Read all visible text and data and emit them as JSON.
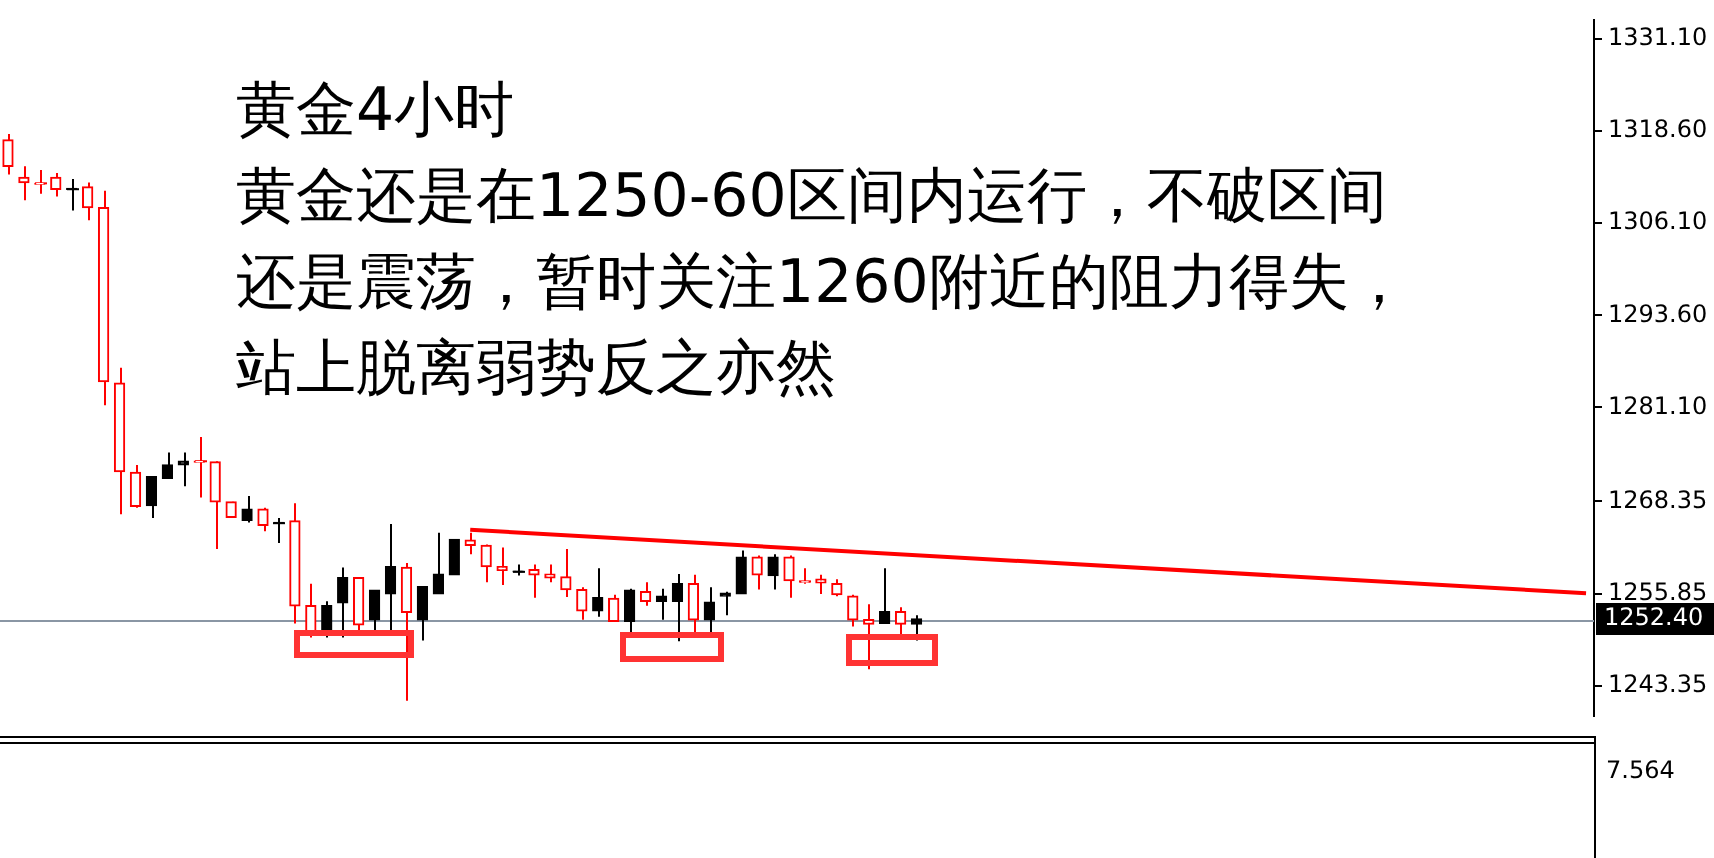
{
  "chart_data": [
    {
      "type": "candlestick",
      "title": "黄金4小时",
      "annotations": [
        "黄金还是在1250-60区间内运行，不破区间",
        "还是震荡，暂时关注1260附近的阻力得失，",
        "站上脱离弱势反之亦然"
      ],
      "categories": [
        null,
        null,
        null,
        null,
        null,
        null,
        null,
        null,
        null,
        null,
        null,
        null,
        null,
        null,
        null,
        null,
        null,
        null,
        null,
        null,
        null,
        null,
        null,
        null,
        null,
        null,
        null,
        null,
        null,
        null,
        null,
        null,
        null,
        null,
        null,
        null,
        null,
        null,
        null,
        null,
        null,
        null,
        null,
        null,
        null,
        null,
        null,
        null,
        null,
        null,
        null,
        null,
        null,
        null,
        null,
        null,
        null,
        null,
        null,
        null,
        null,
        null,
        null,
        null,
        null,
        null,
        null,
        null,
        null,
        null,
        null,
        null,
        null,
        null,
        null,
        null,
        null,
        null,
        null,
        null,
        null,
        null,
        null,
        null,
        null,
        null,
        null,
        null,
        null,
        null,
        null,
        null,
        null,
        null,
        null,
        null,
        null,
        null,
        null,
        null
      ],
      "ohlc": [
        [
          1317.4,
          1318.2,
          1312.7,
          1313.8
        ],
        [
          1312.3,
          1313.8,
          1309.2,
          1311.6
        ],
        [
          1311.5,
          1313.3,
          1310.1,
          1311.4
        ],
        [
          1312.3,
          1312.9,
          1309.7,
          1310.7
        ],
        [
          1310.7,
          1312.1,
          1307.8,
          1310.8
        ],
        [
          1311.0,
          1311.6,
          1306.5,
          1308.2
        ],
        [
          1308.2,
          1310.5,
          1281.4,
          1284.6
        ],
        [
          1284.4,
          1286.5,
          1266.6,
          1272.4
        ],
        [
          1272.3,
          1273.3,
          1267.5,
          1267.7
        ],
        [
          1267.8,
          1271.7,
          1266.1,
          1271.7
        ],
        [
          1271.5,
          1275.0,
          1271.5,
          1273.3
        ],
        [
          1273.3,
          1275.0,
          1270.4,
          1273.8
        ],
        [
          1273.8,
          1277.1,
          1268.9,
          1273.7
        ],
        [
          1273.7,
          1273.8,
          1261.9,
          1268.3
        ],
        [
          1268.3,
          1268.3,
          1266.2,
          1266.2
        ],
        [
          1265.8,
          1269.1,
          1265.5,
          1267.3
        ],
        [
          1267.3,
          1267.5,
          1264.3,
          1265.1
        ],
        [
          1265.4,
          1266.1,
          1262.7,
          1265.5
        ],
        [
          1265.7,
          1268.1,
          1251.8,
          1254.2
        ],
        [
          1254.2,
          1257.2,
          1249.9,
          1250.7
        ],
        [
          1250.7,
          1254.8,
          1249.9,
          1254.2
        ],
        [
          1254.6,
          1259.4,
          1249.9,
          1258.0
        ],
        [
          1258.0,
          1258.0,
          1250.9,
          1251.6
        ],
        [
          1252.3,
          1256.3,
          1250.9,
          1256.3
        ],
        [
          1255.8,
          1265.3,
          1250.9,
          1259.5
        ],
        [
          1259.4,
          1260.0,
          1241.3,
          1253.3
        ],
        [
          1252.3,
          1256.8,
          1249.5,
          1256.8
        ],
        [
          1255.8,
          1264.1,
          1255.8,
          1258.5
        ],
        [
          1258.4,
          1263.2,
          1258.4,
          1263.2
        ],
        [
          1263.1,
          1264.1,
          1261.2,
          1262.4
        ],
        [
          1262.4,
          1262.5,
          1257.4,
          1259.5
        ],
        [
          1259.5,
          1262.1,
          1257.0,
          1259.0
        ],
        [
          1258.8,
          1259.8,
          1258.3,
          1258.9
        ],
        [
          1259.1,
          1259.8,
          1255.3,
          1258.4
        ],
        [
          1258.5,
          1259.8,
          1257.4,
          1258.0
        ],
        [
          1258.1,
          1261.9,
          1255.4,
          1256.4
        ],
        [
          1256.4,
          1256.7,
          1252.3,
          1253.5
        ],
        [
          1253.5,
          1259.3,
          1252.7,
          1255.3
        ],
        [
          1255.2,
          1255.7,
          1252.1,
          1252.1
        ],
        [
          1252.1,
          1256.5,
          1250.1,
          1256.3
        ],
        [
          1256.1,
          1257.4,
          1254.2,
          1254.8
        ],
        [
          1254.8,
          1256.5,
          1252.3,
          1255.5
        ],
        [
          1254.8,
          1258.5,
          1249.4,
          1257.2
        ],
        [
          1257.2,
          1258.4,
          1250.1,
          1252.3
        ],
        [
          1252.3,
          1256.7,
          1250.4,
          1254.7
        ],
        [
          1255.5,
          1256.1,
          1252.9,
          1255.9
        ],
        [
          1255.8,
          1261.7,
          1255.8,
          1260.8
        ],
        [
          1260.8,
          1261.0,
          1256.4,
          1258.4
        ],
        [
          1258.3,
          1261.2,
          1256.4,
          1260.8
        ],
        [
          1260.8,
          1261.0,
          1255.3,
          1257.6
        ],
        [
          1257.5,
          1259.3,
          1257.2,
          1257.4
        ],
        [
          1257.8,
          1258.4,
          1255.8,
          1257.3
        ],
        [
          1257.2,
          1257.8,
          1255.5,
          1255.7
        ],
        [
          1255.5,
          1255.7,
          1251.4,
          1252.3
        ],
        [
          1252.3,
          1254.4,
          1245.6,
          1251.7
        ],
        [
          1251.8,
          1259.3,
          1251.8,
          1253.4
        ],
        [
          1253.4,
          1254.0,
          1250.3,
          1251.7
        ],
        [
          1251.7,
          1252.9,
          1249.5,
          1252.4
        ],
        null,
        null,
        null,
        null,
        null,
        null,
        null,
        null,
        null,
        null,
        null,
        null,
        null,
        null,
        null,
        null,
        null,
        null,
        null,
        null,
        null,
        null,
        null,
        null,
        null,
        null,
        null,
        null,
        null,
        null,
        null,
        null,
        null,
        null,
        null,
        null,
        null,
        null,
        null,
        null,
        null,
        null
      ],
      "colors": [
        "#ff0000",
        "#ff0000",
        "#ff0000",
        "#ff0000",
        "#000000",
        "#ff0000",
        "#ff0000",
        "#ff0000",
        "#ff0000",
        "#000000",
        "#000000",
        "#000000",
        "#ff0000",
        "#ff0000",
        "#ff0000",
        "#000000",
        "#ff0000",
        "#000000",
        "#ff0000",
        "#ff0000",
        "#000000",
        "#000000",
        "#ff0000",
        "#000000",
        "#000000",
        "#ff0000",
        "#000000",
        "#000000",
        "#000000",
        "#ff0000",
        "#ff0000",
        "#ff0000",
        "#000000",
        "#ff0000",
        "#ff0000",
        "#ff0000",
        "#ff0000",
        "#000000",
        "#ff0000",
        "#000000",
        "#ff0000",
        "#000000",
        "#000000",
        "#ff0000",
        "#000000",
        "#000000",
        "#000000",
        "#ff0000",
        "#000000",
        "#ff0000",
        "#ff0000",
        "#ff0000",
        "#ff0000",
        "#ff0000",
        "#ff0000",
        "#000000",
        "#ff0000",
        "#000000",
        null,
        null,
        null,
        null,
        null,
        null,
        null,
        null,
        null,
        null,
        null,
        null,
        null,
        null,
        null,
        null,
        null,
        null,
        null,
        null,
        null,
        null,
        null,
        null,
        null,
        null,
        null,
        null,
        null,
        null,
        null,
        null,
        null,
        null,
        null,
        null,
        null,
        null,
        null,
        null,
        null,
        null
      ],
      "series": [
        {
          "type": "line",
          "color": "#ff0000",
          "values": [
            null,
            null,
            null,
            null,
            null,
            null,
            null,
            null,
            null,
            null,
            null,
            null,
            null,
            null,
            null,
            null,
            null,
            null,
            null,
            null,
            null,
            null,
            null,
            null,
            null,
            null,
            null,
            null,
            null,
            1264.5,
            null,
            null,
            null,
            null,
            null,
            null,
            null,
            null,
            null,
            null,
            null,
            null,
            null,
            null,
            null,
            null,
            null,
            null,
            null,
            null,
            null,
            null,
            null,
            null,
            null,
            null,
            null,
            null,
            null,
            null,
            null,
            null,
            null,
            null,
            null,
            null,
            null,
            null,
            null,
            null,
            null,
            null,
            null,
            null,
            null,
            null,
            null,
            null,
            null,
            null,
            null,
            null,
            null,
            null,
            null,
            null,
            null,
            null,
            null,
            null,
            null,
            null,
            null,
            null,
            null,
            null,
            null,
            null,
            null,
            1255.9
          ]
        }
      ],
      "ylim": [
        1239.3,
        1333.6
      ],
      "yticks": [
        {
          "value": 1331.1,
          "label": "1331.10"
        },
        {
          "value": 1318.6,
          "label": "1318.60"
        },
        {
          "value": 1306.1,
          "label": "1306.10"
        },
        {
          "value": 1293.6,
          "label": "1293.60"
        },
        {
          "value": 1281.1,
          "label": "1281.10"
        },
        {
          "value": 1268.35,
          "label": "1268.35"
        },
        {
          "value": 1255.85,
          "label": "1255.85"
        },
        {
          "value": 1243.35,
          "label": "1243.35"
        }
      ],
      "ref_lines": [
        {
          "axis": "y",
          "value": 1252.4,
          "label": "1252.40",
          "color": "#8a96a4"
        }
      ],
      "tick_labels": "y"
    },
    {
      "type": "other",
      "annotations": [
        "7.564"
      ]
    }
  ]
}
